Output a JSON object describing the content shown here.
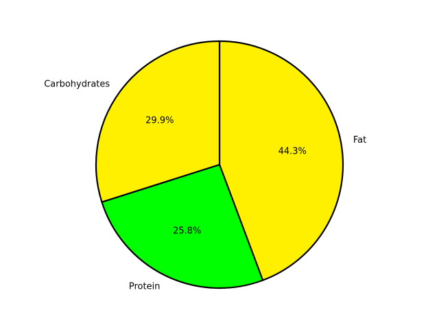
{
  "chart_data": {
    "type": "pie",
    "title": "",
    "slices": [
      {
        "label": "Fat",
        "value": 44.3,
        "pct_label": "44.3%",
        "color": "#fff000"
      },
      {
        "label": "Protein",
        "value": 25.8,
        "pct_label": "25.8%",
        "color": "#00ff00"
      },
      {
        "label": "Carbohydrates",
        "value": 29.9,
        "pct_label": "29.9%",
        "color": "#fff000"
      }
    ],
    "start_angle_deg": 90,
    "direction": "clockwise",
    "edge_color": "#000000",
    "legend": "none"
  }
}
